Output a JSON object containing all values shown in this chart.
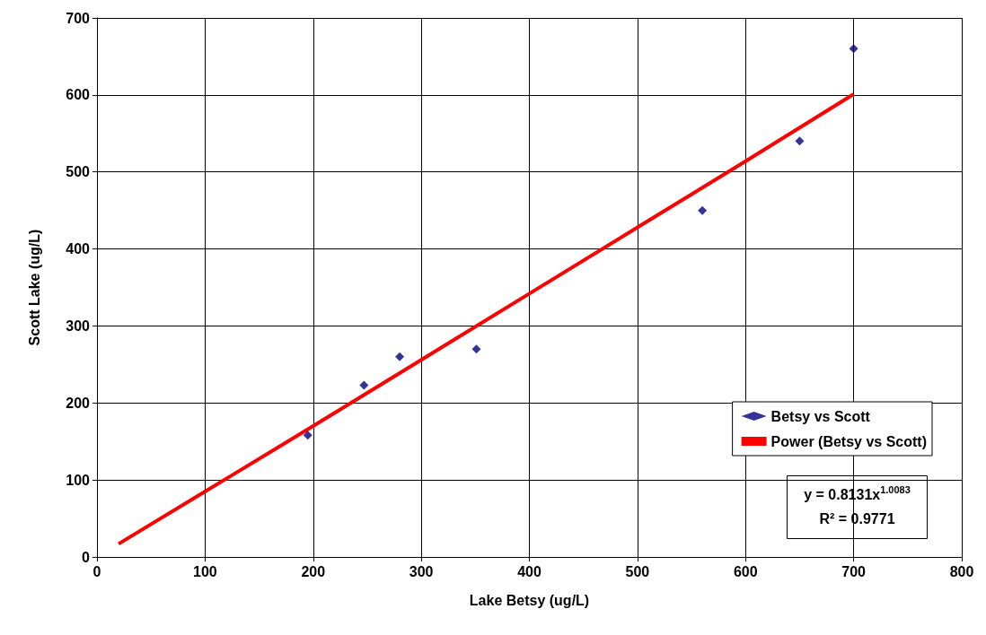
{
  "chart_data": {
    "type": "scatter",
    "xlabel": "Lake Betsy (ug/L)",
    "ylabel": "Scott Lake (ug/L)",
    "xlim": [
      0,
      800
    ],
    "xticks": [
      0,
      100,
      200,
      300,
      400,
      500,
      600,
      700,
      800
    ],
    "ylim": [
      0,
      700
    ],
    "yticks": [
      0,
      100,
      200,
      300,
      400,
      500,
      600,
      700
    ],
    "grid": true,
    "legend": "right",
    "series": [
      {
        "name": "Betsy vs Scott",
        "marker": "diamond",
        "color": "#000080",
        "x": [
          195,
          247,
          280,
          351,
          560,
          650,
          700
        ],
        "values": [
          158,
          223,
          260,
          270,
          450,
          540,
          660
        ]
      },
      {
        "name": "Power (Betsy vs Scott)",
        "type": "line",
        "marker": "none",
        "color": "#ff0000",
        "line_style": "solid",
        "x": [
          20,
          100,
          200,
          300,
          400,
          500,
          600,
          700
        ],
        "values": [
          17,
          85,
          170,
          256,
          342,
          428,
          514,
          601
        ]
      }
    ],
    "annotations": [
      "y = 0.8131x$^{1.0083}$",
      "R² = 0.9771"
    ]
  }
}
